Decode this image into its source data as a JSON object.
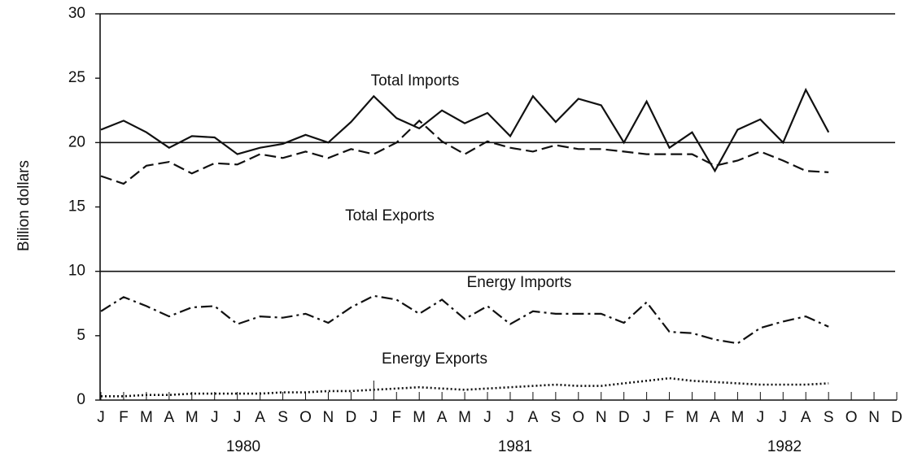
{
  "chart_data": {
    "type": "line",
    "y_label": "Billion dollars",
    "categories": [
      "J",
      "F",
      "M",
      "A",
      "M",
      "J",
      "J",
      "A",
      "S",
      "O",
      "N",
      "D",
      "J",
      "F",
      "M",
      "A",
      "M",
      "J",
      "J",
      "A",
      "S",
      "O",
      "N",
      "D",
      "J",
      "F",
      "M",
      "A",
      "M",
      "J",
      "J",
      "A",
      "S",
      "O",
      "N",
      "D"
    ],
    "year_labels": [
      "1980",
      "1981",
      "1982"
    ],
    "series": [
      {
        "name": "Total Imports",
        "color": "#111111",
        "linestyle": "solid",
        "values": [
          21.0,
          21.7,
          20.8,
          19.6,
          20.5,
          20.4,
          19.1,
          19.6,
          19.9,
          20.6,
          20.0,
          21.6,
          23.6,
          21.9,
          21.1,
          22.5,
          21.5,
          22.3,
          20.5,
          23.6,
          21.6,
          23.4,
          22.9,
          20.0,
          23.2,
          19.6,
          20.8,
          17.8,
          21.0,
          21.8,
          20.0,
          24.1,
          20.8,
          null,
          null,
          null
        ]
      },
      {
        "name": "Total Exports",
        "color": "#111111",
        "linestyle": "dashed",
        "values": [
          17.4,
          16.8,
          18.2,
          18.5,
          17.6,
          18.4,
          18.3,
          19.1,
          18.8,
          19.3,
          18.8,
          19.5,
          19.1,
          20.0,
          21.7,
          20.1,
          19.1,
          20.1,
          19.6,
          19.3,
          19.8,
          19.5,
          19.5,
          19.3,
          19.1,
          19.1,
          19.1,
          18.2,
          18.6,
          19.3,
          18.6,
          17.8,
          17.7,
          null,
          null,
          null
        ]
      },
      {
        "name": "Energy Imports",
        "color": "#111111",
        "linestyle": "dashdot",
        "values": [
          6.9,
          8.0,
          7.3,
          6.5,
          7.2,
          7.3,
          5.9,
          6.5,
          6.4,
          6.7,
          6.0,
          7.2,
          8.1,
          7.8,
          6.7,
          7.8,
          6.3,
          7.3,
          5.9,
          6.9,
          6.7,
          6.7,
          6.7,
          6.0,
          7.6,
          5.3,
          5.2,
          4.7,
          4.4,
          5.6,
          6.1,
          6.5,
          5.7,
          null,
          null,
          null
        ]
      },
      {
        "name": "Energy Exports",
        "color": "#111111",
        "linestyle": "dotted",
        "values": [
          0.3,
          0.3,
          0.4,
          0.4,
          0.5,
          0.5,
          0.5,
          0.5,
          0.6,
          0.6,
          0.7,
          0.7,
          0.8,
          0.9,
          1.0,
          0.9,
          0.8,
          0.9,
          1.0,
          1.1,
          1.2,
          1.1,
          1.1,
          1.3,
          1.5,
          1.7,
          1.5,
          1.4,
          1.3,
          1.2,
          1.2,
          1.2,
          1.3,
          null,
          null,
          null
        ]
      }
    ],
    "ylim": [
      0,
      30
    ],
    "yticks": [
      0,
      5,
      10,
      15,
      20,
      25,
      30
    ],
    "reference_lines": [
      10,
      20
    ]
  }
}
